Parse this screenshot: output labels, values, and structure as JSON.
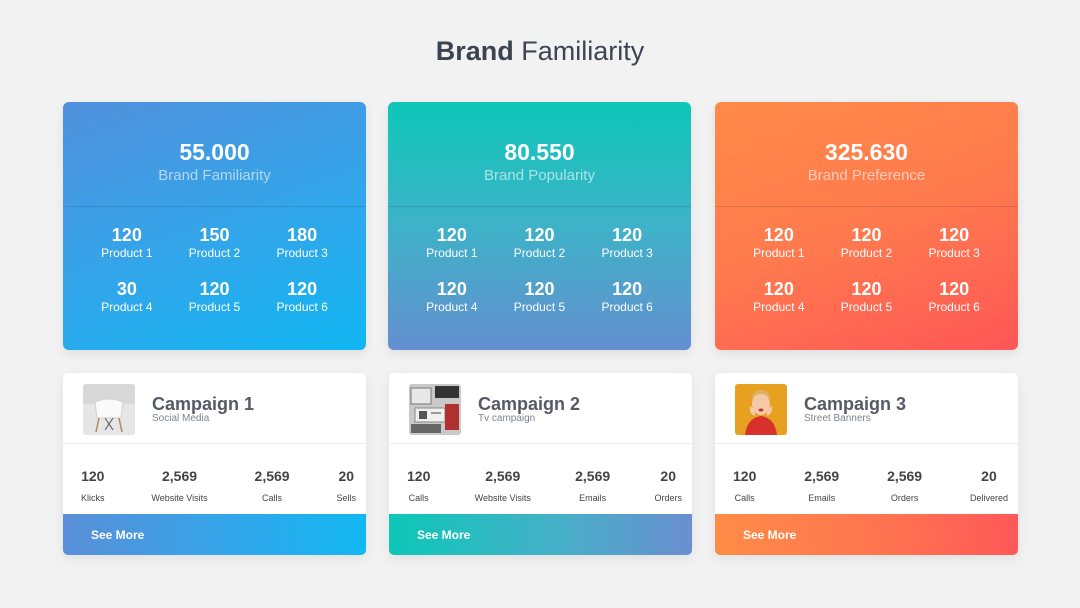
{
  "title": {
    "bold": "Brand",
    "rest": "Familiarity"
  },
  "stat_cards": [
    {
      "total": "55.000",
      "label": "Brand Familiarity",
      "products": [
        {
          "value": "120",
          "name": "Product 1"
        },
        {
          "value": "150",
          "name": "Product 2"
        },
        {
          "value": "180",
          "name": "Product 3"
        },
        {
          "value": "30",
          "name": "Product 4"
        },
        {
          "value": "120",
          "name": "Product 5"
        },
        {
          "value": "120",
          "name": "Product 6"
        }
      ]
    },
    {
      "total": "80.550",
      "label": "Brand Popularity",
      "products": [
        {
          "value": "120",
          "name": "Product 1"
        },
        {
          "value": "120",
          "name": "Product 2"
        },
        {
          "value": "120",
          "name": "Product 3"
        },
        {
          "value": "120",
          "name": "Product 4"
        },
        {
          "value": "120",
          "name": "Product 5"
        },
        {
          "value": "120",
          "name": "Product 6"
        }
      ]
    },
    {
      "total": "325.630",
      "label": "Brand Preference",
      "products": [
        {
          "value": "120",
          "name": "Product 1"
        },
        {
          "value": "120",
          "name": "Product 2"
        },
        {
          "value": "120",
          "name": "Product 3"
        },
        {
          "value": "120",
          "name": "Product 4"
        },
        {
          "value": "120",
          "name": "Product 5"
        },
        {
          "value": "120",
          "name": "Product 6"
        }
      ]
    }
  ],
  "campaigns": [
    {
      "title": "Campaign 1",
      "subtitle": "Social Media",
      "image": "chair-photo",
      "stats": [
        {
          "value": "120",
          "label": "Klicks"
        },
        {
          "value": "2,569",
          "label": "Website Visits"
        },
        {
          "value": "2,569",
          "label": "Calls"
        },
        {
          "value": "20",
          "label": "Sells"
        }
      ],
      "button": "See More"
    },
    {
      "title": "Campaign 2",
      "subtitle": "Tv campaign",
      "image": "desk-photo",
      "stats": [
        {
          "value": "120",
          "label": "Calls"
        },
        {
          "value": "2,569",
          "label": "Website Visits"
        },
        {
          "value": "2,569",
          "label": "Emails"
        },
        {
          "value": "20",
          "label": "Orders"
        }
      ],
      "button": "See More"
    },
    {
      "title": "Campaign 3",
      "subtitle": "Street Banners",
      "image": "woman-photo",
      "stats": [
        {
          "value": "120",
          "label": "Calls"
        },
        {
          "value": "2,569",
          "label": "Emails"
        },
        {
          "value": "2,569",
          "label": "Orders"
        },
        {
          "value": "20",
          "label": "Delivered"
        }
      ],
      "button": "See More"
    }
  ],
  "colors": {
    "blue": "#32a6ea",
    "teal": "#0dc7b8",
    "orange": "#ff7a4e",
    "background": "#f2f2f2"
  }
}
